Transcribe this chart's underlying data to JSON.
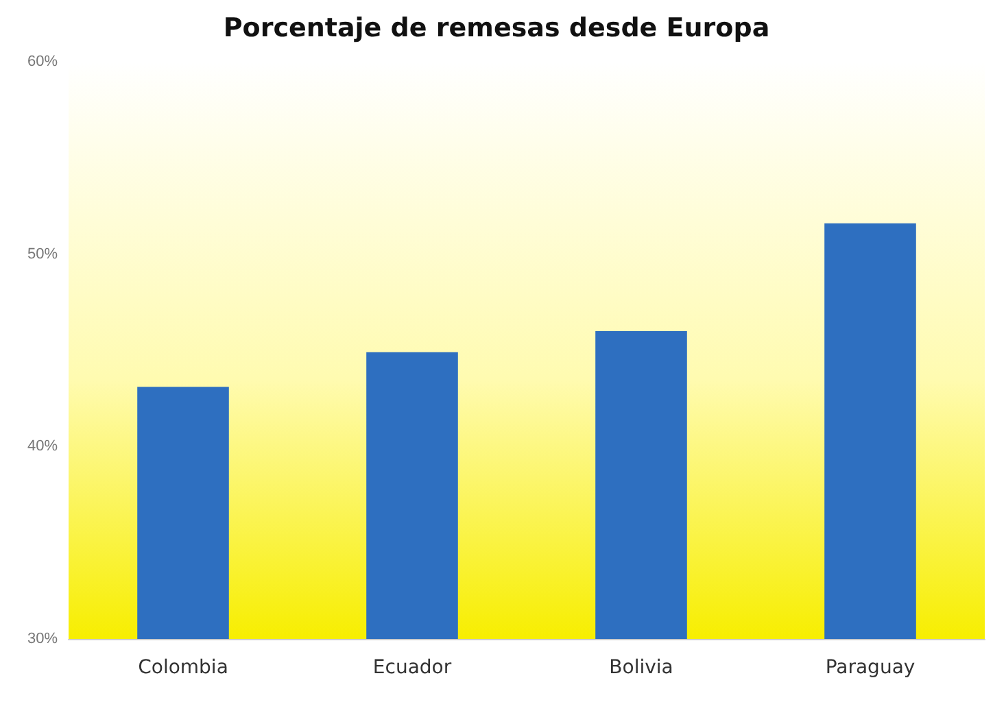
{
  "chart_data": {
    "type": "bar",
    "title": "Porcentaje de remesas desde Europa",
    "categories": [
      "Colombia",
      "Ecuador",
      "Bolivia",
      "Paraguay"
    ],
    "values": [
      43.1,
      44.9,
      46.0,
      51.6
    ],
    "color": "#2e6fc0",
    "ylim": [
      30,
      60
    ],
    "yticks": [
      {
        "value": 30,
        "label": "30%"
      },
      {
        "value": 40,
        "label": "40%"
      },
      {
        "value": 50,
        "label": "50%"
      },
      {
        "value": 60,
        "label": "60%"
      }
    ],
    "grid": false
  }
}
